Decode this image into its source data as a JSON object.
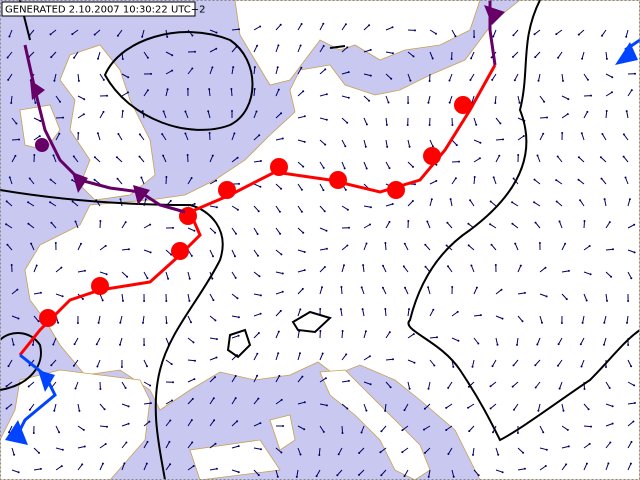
{
  "header": {
    "title": "GENERATED 2.10.2007 10:30:22 UTC+2"
  }
}
